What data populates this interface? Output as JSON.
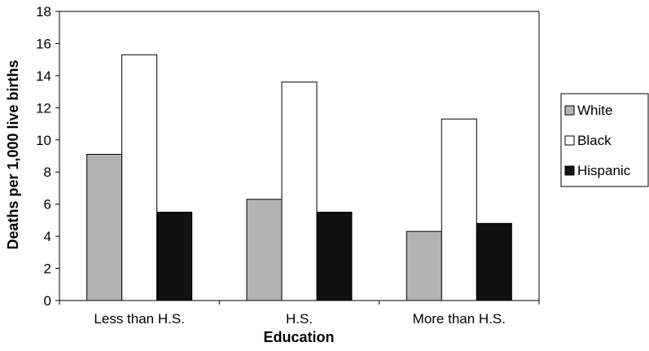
{
  "chart_data": {
    "type": "bar",
    "title": "",
    "xlabel": "Education",
    "ylabel": "Deaths per 1,000 live births",
    "categories": [
      "Less than H.S.",
      "H.S.",
      "More than H.S."
    ],
    "series": [
      {
        "name": "White",
        "values": [
          9.1,
          6.3,
          4.3
        ],
        "color": "#b3b3b3"
      },
      {
        "name": "Black",
        "values": [
          15.3,
          13.6,
          11.3
        ],
        "color": "#ffffff"
      },
      {
        "name": "Hispanic",
        "values": [
          5.5,
          5.5,
          4.8
        ],
        "color": "#111111"
      }
    ],
    "ylim": [
      0,
      18
    ],
    "yticks": [
      0,
      2,
      4,
      6,
      8,
      10,
      12,
      14,
      16,
      18
    ],
    "grid": false,
    "legend_position": "right"
  }
}
